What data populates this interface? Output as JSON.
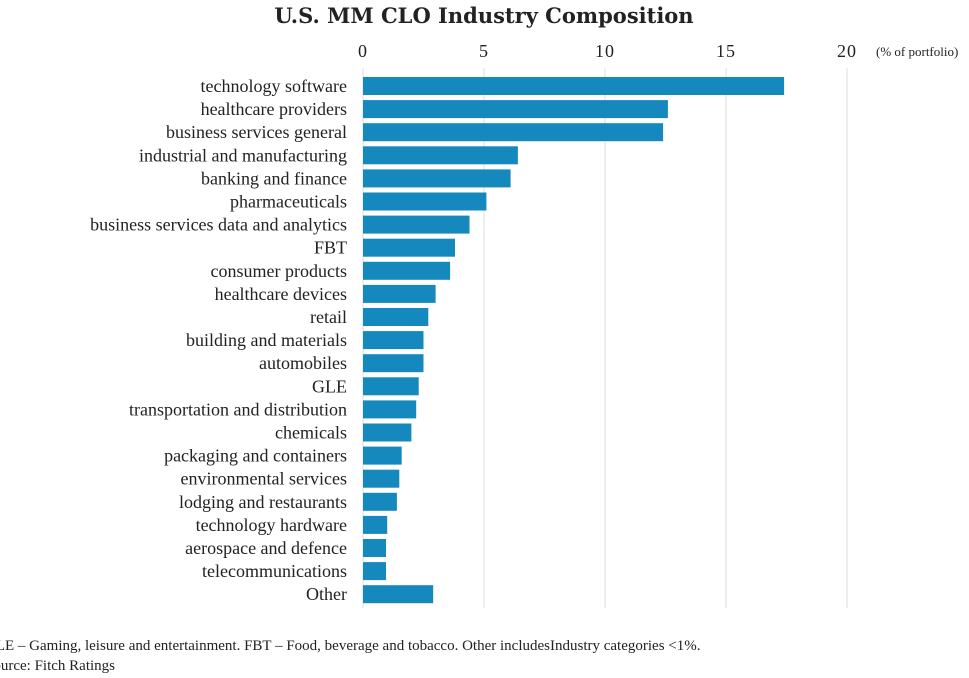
{
  "chart_data": {
    "type": "bar",
    "orientation": "horizontal",
    "title": "U.S. MM CLO Industry Composition",
    "unit_label": "(% of portfolio)",
    "xlim": [
      0,
      20
    ],
    "x_ticks": [
      0,
      5,
      10,
      15,
      20
    ],
    "grid": true,
    "series": [
      {
        "name": "% of portfolio",
        "color": "#1589be",
        "categories": [
          "technology software",
          "healthcare providers",
          "business services general",
          "industrial and manufacturing",
          "banking and finance",
          "pharmaceuticals",
          "business services data and analytics",
          "FBT",
          "consumer products",
          "healthcare devices",
          "retail",
          "building and materials",
          "automobiles",
          "GLE",
          "transportation and distribution",
          "chemicals",
          "packaging and containers",
          "environmental services",
          "lodging and restaurants",
          "technology hardware",
          "aerospace and defence",
          "telecommunications",
          "Other"
        ],
        "values": [
          17.4,
          12.6,
          12.4,
          6.4,
          6.1,
          5.1,
          4.4,
          3.8,
          3.6,
          3.0,
          2.7,
          2.5,
          2.5,
          2.3,
          2.2,
          2.0,
          1.6,
          1.5,
          1.4,
          1.0,
          0.95,
          0.95,
          2.9
        ]
      }
    ]
  },
  "footnotes": {
    "line1": "GLE – Gaming, leisure and entertainment. FBT – Food, beverage and tobacco. Other includesIndustry categories <1%.",
    "line2": "Source: Fitch Ratings"
  }
}
